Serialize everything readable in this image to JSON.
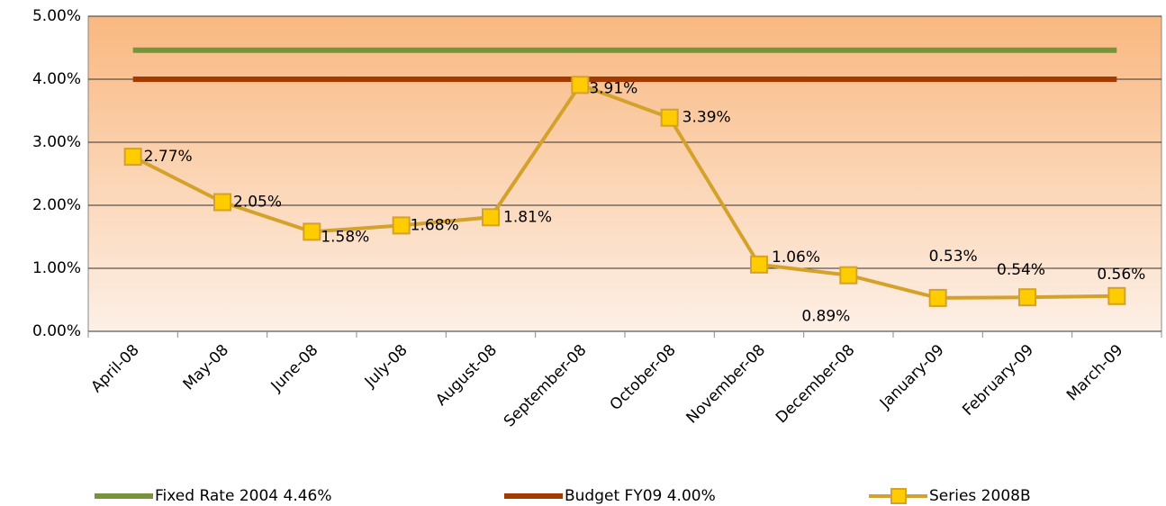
{
  "chart_data": {
    "type": "line",
    "categories": [
      "April-08",
      "May-08",
      "June-08",
      "July-08",
      "August-08",
      "September-08",
      "October-08",
      "November-08",
      "December-08",
      "January-09",
      "February-09",
      "March-09"
    ],
    "series": [
      {
        "name": "Fixed Rate 2004 4.46%",
        "color": "#77933c",
        "values": [
          4.46,
          4.46,
          4.46,
          4.46,
          4.46,
          4.46,
          4.46,
          4.46,
          4.46,
          4.46,
          4.46,
          4.46
        ]
      },
      {
        "name": "Budget FY09 4.00%",
        "color": "#a33a00",
        "values": [
          4.0,
          4.0,
          4.0,
          4.0,
          4.0,
          4.0,
          4.0,
          4.0,
          4.0,
          4.0,
          4.0,
          4.0
        ]
      },
      {
        "name": "Series 2008B",
        "color": "#d4a12a",
        "marker_color": "#ffcc00",
        "marker": "square",
        "values": [
          2.77,
          2.05,
          1.58,
          1.68,
          1.81,
          3.91,
          3.39,
          1.06,
          0.89,
          0.53,
          0.54,
          0.56
        ],
        "value_labels": [
          "2.77%",
          "2.05%",
          "1.58%",
          "1.68%",
          "1.81%",
          "3.91%",
          "3.39%",
          "1.06%",
          "0.89%",
          "0.53%",
          "0.54%",
          "0.56%"
        ]
      }
    ],
    "ylim": [
      0,
      5
    ],
    "yticks": [
      {
        "value": 0,
        "label": "0.00%"
      },
      {
        "value": 1,
        "label": "1.00%"
      },
      {
        "value": 2,
        "label": "2.00%"
      },
      {
        "value": 3,
        "label": "3.00%"
      },
      {
        "value": 4,
        "label": "4.00%"
      },
      {
        "value": 5,
        "label": "5.00%"
      }
    ],
    "grid": true,
    "legend": "bottom"
  }
}
